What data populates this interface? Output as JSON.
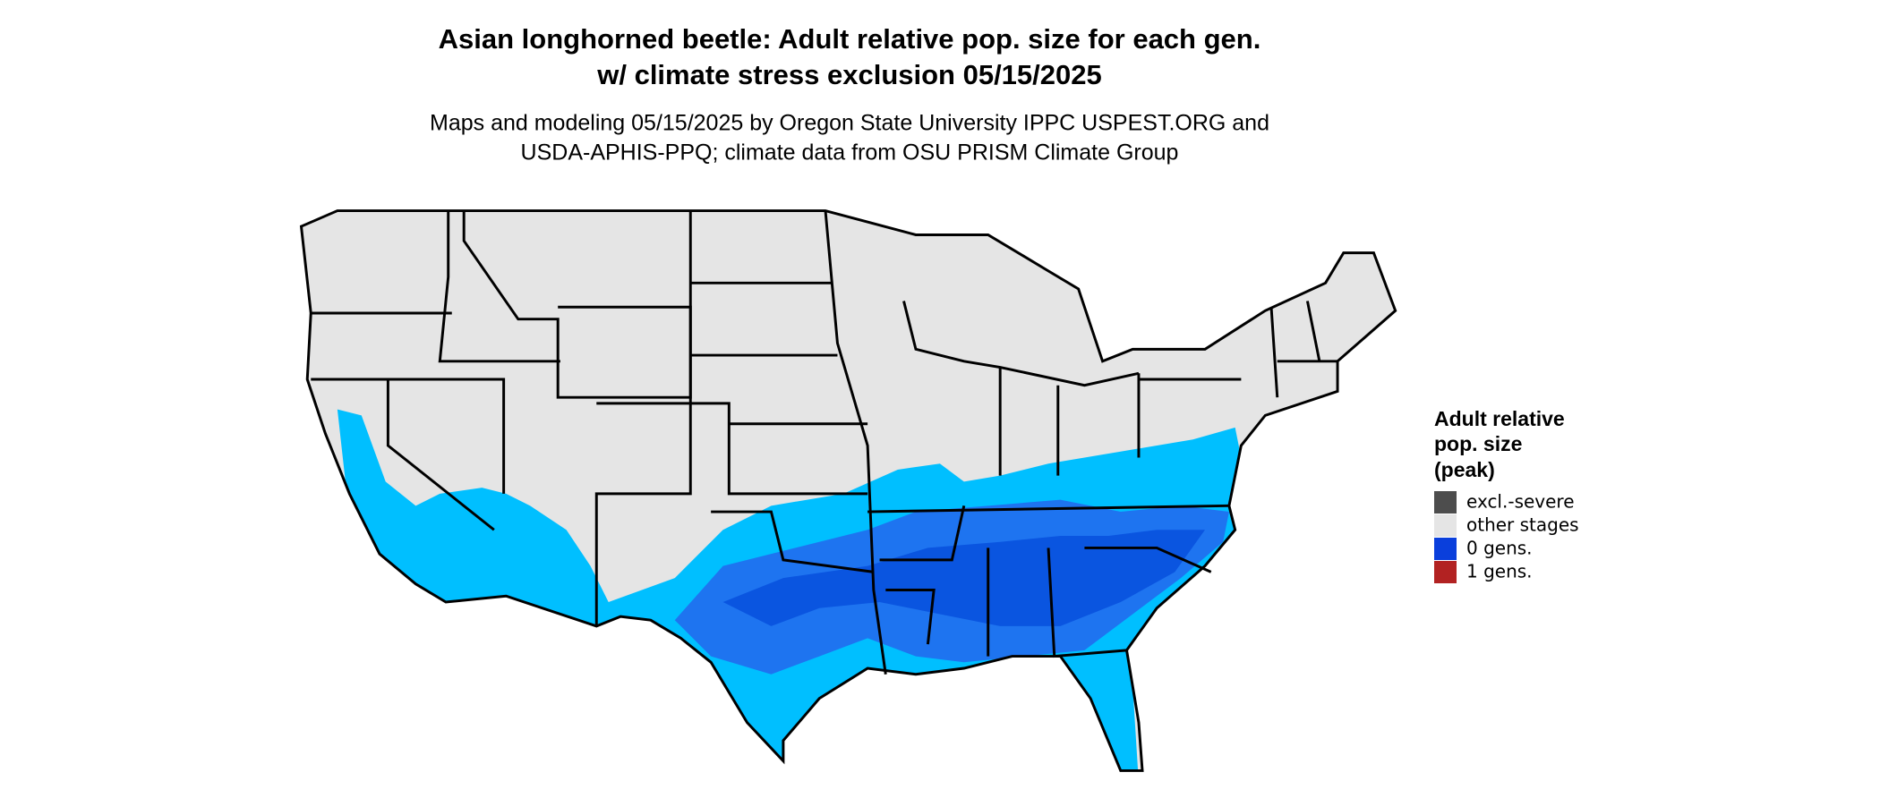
{
  "title": [
    "Asian longhorned beetle: Adult relative pop. size for each gen.",
    "w/ climate stress exclusion 05/15/2025"
  ],
  "subtitle": [
    "Maps and modeling 05/15/2025 by Oregon State University IPPC USPEST.ORG and",
    "USDA-APHIS-PPQ; climate data from OSU PRISM Climate Group"
  ],
  "legend": {
    "title": [
      "Adult relative",
      "pop. size",
      "(peak)"
    ],
    "items": [
      {
        "label": "excl.-severe",
        "color": "#4d4d4d"
      },
      {
        "label": "other stages",
        "color": "#e5e5e5"
      },
      {
        "label": "0 gens.",
        "color": "#0a3fdc"
      },
      {
        "label": "1 gens.",
        "color": "#b22222"
      }
    ]
  }
}
